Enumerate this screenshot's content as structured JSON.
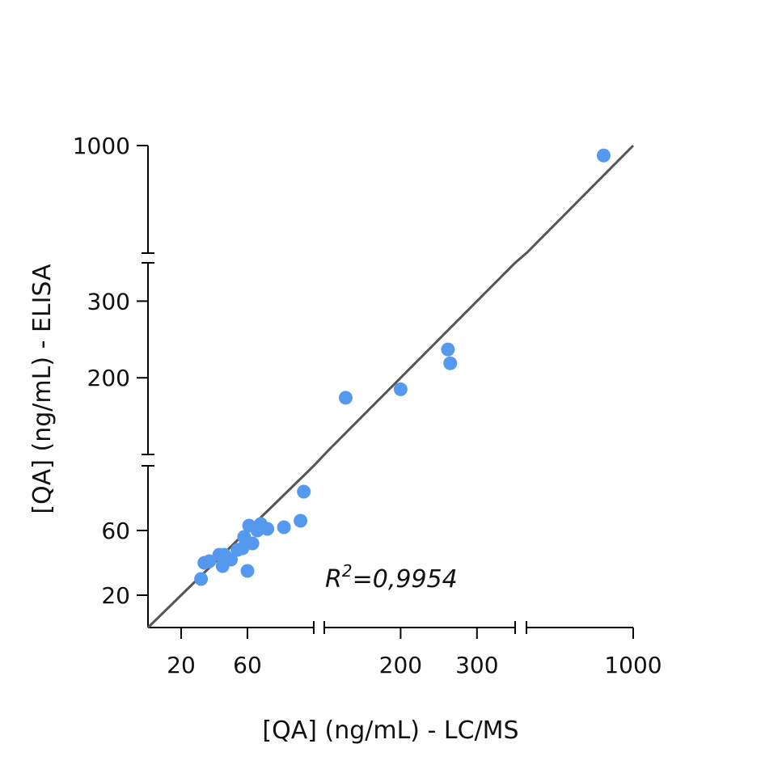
{
  "chart_data": {
    "type": "scatter",
    "title": "",
    "xlabel": "[QA] (ng/mL) - LC/MS",
    "ylabel": "[QA] (ng/mL) - ELISA",
    "x_scale": "broken",
    "y_scale": "broken",
    "xlim": [
      0,
      1000
    ],
    "ylim": [
      0,
      1000
    ],
    "x_segments": [
      [
        0,
        100
      ],
      [
        100,
        350
      ],
      [
        350,
        1000
      ]
    ],
    "y_segments": [
      [
        0,
        100
      ],
      [
        100,
        350
      ],
      [
        350,
        1000
      ]
    ],
    "x_ticks": [
      20,
      60,
      200,
      300,
      1000
    ],
    "y_ticks": [
      20,
      60,
      200,
      300,
      1000
    ],
    "grid": false,
    "annotation": {
      "r2_symbol": "R",
      "r2_superscript": "2",
      "r2_value": "=0,9954"
    },
    "identity_line": true,
    "point_color": "#5599EE",
    "line_color": "#555555",
    "series": [
      {
        "points": [
          {
            "x": 32,
            "y": 30
          },
          {
            "x": 34,
            "y": 40
          },
          {
            "x": 37,
            "y": 41
          },
          {
            "x": 43,
            "y": 45
          },
          {
            "x": 45,
            "y": 38
          },
          {
            "x": 46,
            "y": 45
          },
          {
            "x": 50,
            "y": 42
          },
          {
            "x": 54,
            "y": 48
          },
          {
            "x": 57,
            "y": 49
          },
          {
            "x": 58,
            "y": 56
          },
          {
            "x": 60,
            "y": 35
          },
          {
            "x": 61,
            "y": 63
          },
          {
            "x": 63,
            "y": 52
          },
          {
            "x": 66,
            "y": 60
          },
          {
            "x": 68,
            "y": 64
          },
          {
            "x": 72,
            "y": 61
          },
          {
            "x": 82,
            "y": 62
          },
          {
            "x": 92,
            "y": 66
          },
          {
            "x": 94,
            "y": 84
          },
          {
            "x": 128,
            "y": 174
          },
          {
            "x": 200,
            "y": 185
          },
          {
            "x": 262,
            "y": 237
          },
          {
            "x": 265,
            "y": 219
          },
          {
            "x": 820,
            "y": 940
          }
        ]
      }
    ]
  }
}
